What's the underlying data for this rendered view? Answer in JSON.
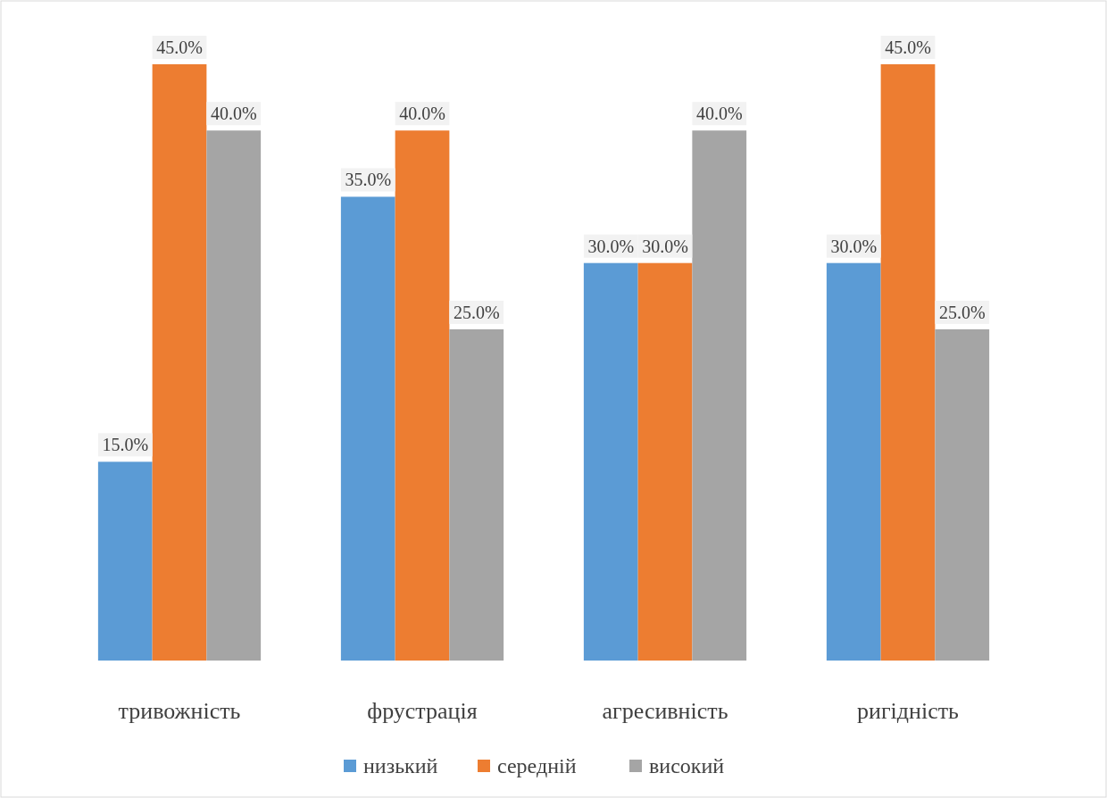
{
  "chart_data": {
    "type": "bar",
    "categories": [
      "тривожність",
      "фрустрація",
      "агресивність",
      "ригідність"
    ],
    "series": [
      {
        "name": "низький",
        "color": "#5b9bd5",
        "values": [
          15,
          35,
          30,
          30
        ],
        "value_labels": [
          "15.0%",
          "35.0%",
          "30.0%",
          "30.0%"
        ]
      },
      {
        "name": "середній",
        "color": "#ed7d31",
        "values": [
          45,
          40,
          30,
          45
        ],
        "value_labels": [
          "45.0%",
          "40.0%",
          "30.0%",
          "45.0%"
        ]
      },
      {
        "name": "високий",
        "color": "#a5a5a5",
        "values": [
          40,
          25,
          40,
          25
        ],
        "value_labels": [
          "40.0%",
          "25.0%",
          "40.0%",
          "25.0%"
        ]
      }
    ],
    "legend": "bottom"
  }
}
